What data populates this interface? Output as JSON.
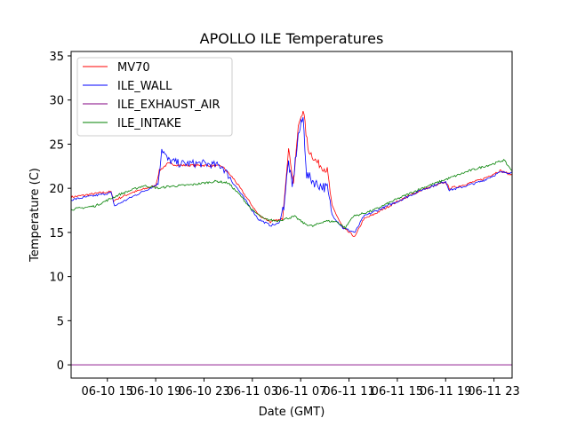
{
  "chart_data": {
    "type": "line",
    "title": "APOLLO ILE Temperatures",
    "xlabel": "Date (GMT)",
    "ylabel": "Temperature (C)",
    "x_unit": "hours since 06-10 12:00 GMT",
    "xlim": [
      0,
      36.5
    ],
    "ylim": [
      -1.5,
      35.5
    ],
    "grid": false,
    "legend_position": "top-left",
    "x_ticks": [
      {
        "x": 3,
        "label": "06-10 15"
      },
      {
        "x": 7,
        "label": "06-10 19"
      },
      {
        "x": 11,
        "label": "06-10 23"
      },
      {
        "x": 15,
        "label": "06-11 03"
      },
      {
        "x": 19,
        "label": "06-11 07"
      },
      {
        "x": 23,
        "label": "06-11 11"
      },
      {
        "x": 27,
        "label": "06-11 15"
      },
      {
        "x": 31,
        "label": "06-11 19"
      },
      {
        "x": 35,
        "label": "06-11 23"
      }
    ],
    "y_ticks": [
      {
        "y": 0,
        "label": "0"
      },
      {
        "y": 5,
        "label": "5"
      },
      {
        "y": 10,
        "label": "10"
      },
      {
        "y": 15,
        "label": "15"
      },
      {
        "y": 20,
        "label": "20"
      },
      {
        "y": 25,
        "label": "25"
      },
      {
        "y": 30,
        "label": "30"
      },
      {
        "y": 35,
        "label": "35"
      }
    ],
    "series": [
      {
        "name": "MV70",
        "color": "#ff0000",
        "points": [
          [
            0,
            19.0
          ],
          [
            2.5,
            19.5
          ],
          [
            3.3,
            19.6
          ],
          [
            3.5,
            18.6
          ],
          [
            5,
            19.5
          ],
          [
            7,
            20.3
          ],
          [
            7.3,
            22.0
          ],
          [
            8,
            22.8
          ],
          [
            9,
            22.6
          ],
          [
            11,
            22.6
          ],
          [
            12.5,
            22.5
          ],
          [
            13.5,
            21.0
          ],
          [
            14.5,
            19.0
          ],
          [
            15.5,
            17.0
          ],
          [
            16.5,
            16.2
          ],
          [
            17.5,
            16.5
          ],
          [
            18.0,
            24.5
          ],
          [
            18.4,
            20.5
          ],
          [
            18.8,
            27.0
          ],
          [
            19.2,
            29.0
          ],
          [
            19.6,
            24.5
          ],
          [
            20.3,
            23.0
          ],
          [
            21.2,
            22.0
          ],
          [
            21.6,
            18.0
          ],
          [
            22.5,
            15.5
          ],
          [
            23.5,
            14.5
          ],
          [
            24.2,
            16.5
          ],
          [
            25,
            17.0
          ],
          [
            27,
            18.5
          ],
          [
            29,
            19.8
          ],
          [
            31,
            20.7
          ],
          [
            31.3,
            20.0
          ],
          [
            32,
            20.2
          ],
          [
            34,
            21.0
          ],
          [
            35.5,
            22.0
          ],
          [
            36.5,
            21.5
          ]
        ]
      },
      {
        "name": "ILE_WALL",
        "color": "#0000ff",
        "points": [
          [
            0,
            18.7
          ],
          [
            2.5,
            19.3
          ],
          [
            3.3,
            19.5
          ],
          [
            3.6,
            18.0
          ],
          [
            5,
            19.0
          ],
          [
            6.5,
            20.0
          ],
          [
            7.2,
            20.5
          ],
          [
            7.5,
            24.5
          ],
          [
            8,
            23.2
          ],
          [
            9,
            22.8
          ],
          [
            11,
            22.8
          ],
          [
            12.5,
            22.5
          ],
          [
            13.5,
            20.5
          ],
          [
            14.5,
            18.5
          ],
          [
            15.5,
            16.5
          ],
          [
            16.5,
            15.8
          ],
          [
            17.2,
            16.0
          ],
          [
            17.6,
            18.0
          ],
          [
            18.0,
            23.0
          ],
          [
            18.3,
            20.0
          ],
          [
            18.8,
            26.0
          ],
          [
            19.2,
            28.0
          ],
          [
            19.5,
            21.5
          ],
          [
            20.3,
            20.5
          ],
          [
            21.2,
            20.0
          ],
          [
            21.6,
            17.0
          ],
          [
            22.5,
            15.5
          ],
          [
            23.5,
            15.0
          ],
          [
            24.2,
            16.8
          ],
          [
            25,
            17.3
          ],
          [
            27,
            18.5
          ],
          [
            29,
            19.8
          ],
          [
            31,
            20.8
          ],
          [
            31.3,
            19.8
          ],
          [
            32,
            20.0
          ],
          [
            34,
            20.8
          ],
          [
            35.5,
            21.8
          ],
          [
            36.5,
            21.8
          ]
        ]
      },
      {
        "name": "ILE_EXHAUST_AIR",
        "color": "#800080",
        "points": [
          [
            0,
            0.0
          ],
          [
            36.5,
            0.0
          ]
        ]
      },
      {
        "name": "ILE_INTAKE",
        "color": "#008000",
        "points": [
          [
            0,
            17.6
          ],
          [
            2,
            18.0
          ],
          [
            4,
            19.3
          ],
          [
            6,
            20.3
          ],
          [
            7.3,
            20.0
          ],
          [
            8,
            20.2
          ],
          [
            10,
            20.4
          ],
          [
            12,
            20.8
          ],
          [
            13,
            20.6
          ],
          [
            14,
            19.2
          ],
          [
            15,
            17.5
          ],
          [
            16,
            16.5
          ],
          [
            17,
            16.3
          ],
          [
            18.5,
            16.8
          ],
          [
            19.3,
            16.0
          ],
          [
            20,
            15.7
          ],
          [
            21,
            16.3
          ],
          [
            22,
            16.2
          ],
          [
            22.7,
            15.5
          ],
          [
            23.3,
            16.8
          ],
          [
            25,
            17.5
          ],
          [
            27,
            18.8
          ],
          [
            29,
            20.0
          ],
          [
            31,
            21.0
          ],
          [
            33,
            22.0
          ],
          [
            35,
            22.8
          ],
          [
            35.8,
            23.2
          ],
          [
            36.5,
            22.0
          ]
        ]
      }
    ]
  }
}
